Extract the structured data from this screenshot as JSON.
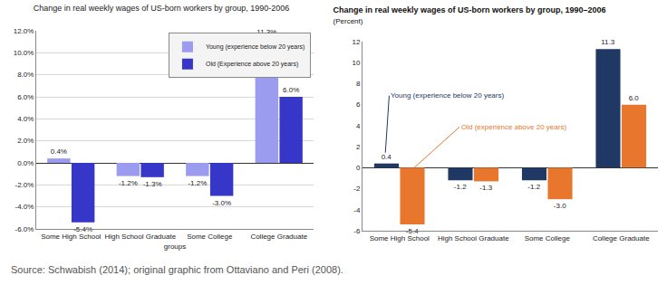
{
  "chart_data": [
    {
      "type": "bar",
      "title": "Change in real weekly wages of US-born workers by group, 1990-2006",
      "x_label": "groups",
      "categories": [
        "Some High School",
        "High School Graduate",
        "Some College",
        "College Graduate"
      ],
      "series": [
        {
          "name": "Young (experience below 20 years)",
          "color": "#9b9bf0",
          "values": [
            0.4,
            -1.2,
            -1.2,
            11.3
          ],
          "value_labels": [
            "0.4%",
            "-1.2%",
            "-1.2%",
            "11.3%"
          ]
        },
        {
          "name": "Old (Experience above 20 years)",
          "color": "#3636c8",
          "values": [
            -5.4,
            -1.3,
            -3.0,
            6.0
          ],
          "value_labels": [
            "-5.4%",
            "-1.3%",
            "-3.0%",
            "6.0%"
          ]
        }
      ],
      "ylim": [
        -6,
        12
      ],
      "yticks": [
        {
          "value": -6,
          "label": "-6.0%"
        },
        {
          "value": -4,
          "label": "-4.0%"
        },
        {
          "value": -2,
          "label": "-2.0%"
        },
        {
          "value": 0,
          "label": "0.0%"
        },
        {
          "value": 2,
          "label": "2.0%"
        },
        {
          "value": 4,
          "label": "4.0%"
        },
        {
          "value": 6,
          "label": "6.0%"
        },
        {
          "value": 8,
          "label": "8.0%"
        },
        {
          "value": 10,
          "label": "10.0%"
        },
        {
          "value": 12,
          "label": "12.0%"
        }
      ],
      "grid": true,
      "legend": "top right",
      "data_labels": true
    },
    {
      "type": "bar",
      "title": "Change in real weekly wages of US-born workers by group, 1990–2006",
      "subtitle": "(Percent)",
      "categories": [
        "Some High School",
        "High School Graduate",
        "Some College",
        "College Graduate"
      ],
      "series": [
        {
          "name": "Young (experience below 20 years)",
          "color": "#1f3864",
          "values": [
            0.4,
            -1.2,
            -1.2,
            11.3
          ],
          "value_labels": [
            "0.4",
            "-1.2",
            "-1.2",
            "11.3"
          ]
        },
        {
          "name": "Old (experience above 20 years)",
          "color": "#e8762d",
          "values": [
            -5.4,
            -1.3,
            -3.0,
            6.0
          ],
          "value_labels": [
            "-5.4",
            "-1.3",
            "-3.0",
            "6.0"
          ]
        }
      ],
      "ylim": [
        -6,
        12
      ],
      "yticks": [
        -6,
        -4,
        -2,
        0,
        2,
        4,
        6,
        8,
        10,
        12
      ],
      "grid": false,
      "data_labels": true
    }
  ],
  "source": "Source: Schwabish (2014); original graphic from Ottaviano and Peri (2008)."
}
